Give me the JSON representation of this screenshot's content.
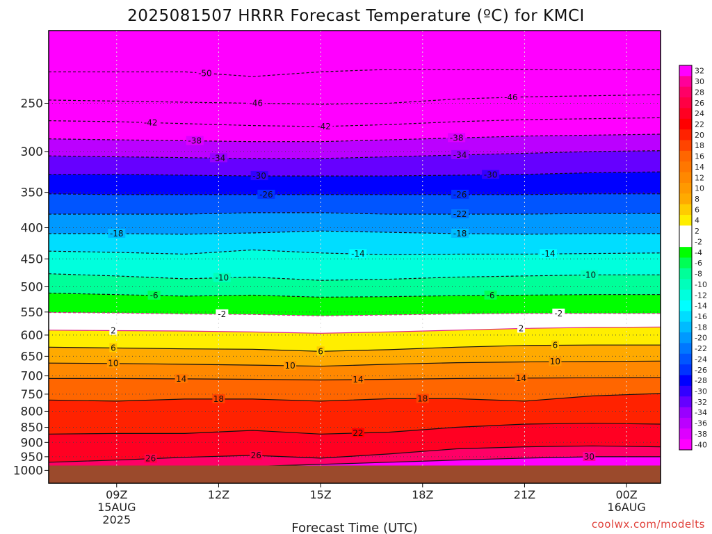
{
  "chart_data": {
    "type": "heatmap",
    "title": "2025081507 HRRR Forecast Temperature (ºC) for KMCI",
    "xlabel": "Forecast Time (UTC)",
    "ylabel": "",
    "credit": "coolwx.com/modelts",
    "x_range_hours": [
      7,
      25
    ],
    "y_range_hpa": [
      1050,
      190
    ],
    "y_ticks": [
      250,
      300,
      350,
      400,
      450,
      500,
      550,
      600,
      650,
      700,
      750,
      800,
      850,
      900,
      950,
      1000
    ],
    "x_ticks": [
      {
        "hour": 9,
        "lines": [
          "09Z",
          "15AUG",
          "2025"
        ]
      },
      {
        "hour": 12,
        "lines": [
          "12Z"
        ]
      },
      {
        "hour": 15,
        "lines": [
          "15Z"
        ]
      },
      {
        "hour": 18,
        "lines": [
          "18Z"
        ]
      },
      {
        "hour": 21,
        "lines": [
          "21Z"
        ]
      },
      {
        "hour": 24,
        "lines": [
          "00Z",
          "16AUG"
        ]
      }
    ],
    "colorbar_ticks": [
      32,
      30,
      28,
      26,
      24,
      22,
      20,
      18,
      16,
      14,
      12,
      10,
      8,
      6,
      4,
      2,
      -2,
      -4,
      -6,
      -8,
      -10,
      -12,
      -14,
      -16,
      -18,
      -20,
      -22,
      -24,
      -26,
      -28,
      -30,
      -32,
      -34,
      -36,
      -38,
      -40
    ],
    "colorbar_colors": [
      "#ff00ff",
      "#ff0099",
      "#ff0066",
      "#ff0044",
      "#ff0022",
      "#ff0000",
      "#ff2200",
      "#ff4400",
      "#ff6600",
      "#ff7700",
      "#ff8800",
      "#ff9900",
      "#ffaa00",
      "#ffcc00",
      "#ffee00",
      "#ffffff",
      "#ffffff",
      "#00ff00",
      "#00ff55",
      "#00ff99",
      "#00ffbb",
      "#00ffdd",
      "#00ffff",
      "#00ddff",
      "#00bbff",
      "#0099ff",
      "#0077ff",
      "#0055ff",
      "#0033ff",
      "#0000ff",
      "#3300ff",
      "#6600ff",
      "#9900ff",
      "#bb00ff",
      "#dd00ff",
      "#ff00ff"
    ],
    "surface_pressure_hpa": 982,
    "levels": [
      {
        "value": -50,
        "pressure": [
          222,
          222,
          222,
          226,
          222,
          220,
          220,
          220,
          220,
          220
        ]
      },
      {
        "value": -46,
        "pressure": [
          247,
          248,
          249,
          250,
          251,
          250,
          246,
          244,
          243,
          242
        ]
      },
      {
        "value": -42,
        "pressure": [
          267,
          268,
          270,
          272,
          273,
          271,
          268,
          266,
          265,
          264
        ]
      },
      {
        "value": -38,
        "pressure": [
          286,
          287,
          288,
          289,
          289,
          287,
          285,
          283,
          282,
          281
        ]
      },
      {
        "value": -34,
        "pressure": [
          305,
          306,
          307,
          308,
          308,
          306,
          304,
          302,
          300,
          299
        ]
      },
      {
        "value": -30,
        "pressure": [
          327,
          327,
          328,
          329,
          329,
          329,
          328,
          327,
          325,
          324
        ]
      },
      {
        "value": -26,
        "pressure": [
          352,
          353,
          353,
          353,
          353,
          353,
          353,
          353,
          352,
          352
        ]
      },
      {
        "value": -22,
        "pressure": [
          380,
          380,
          380,
          378,
          378,
          380,
          380,
          380,
          379,
          379
        ]
      },
      {
        "value": -18,
        "pressure": [
          409,
          409,
          410,
          408,
          405,
          407,
          409,
          410,
          409,
          409
        ]
      },
      {
        "value": -14,
        "pressure": [
          437,
          439,
          442,
          435,
          440,
          443,
          442,
          442,
          441,
          440
        ]
      },
      {
        "value": -10,
        "pressure": [
          476,
          480,
          485,
          482,
          488,
          486,
          482,
          480,
          478,
          478
        ]
      },
      {
        "value": -6,
        "pressure": [
          512,
          515,
          518,
          516,
          520,
          519,
          517,
          516,
          515,
          515
        ]
      },
      {
        "value": -2,
        "pressure": [
          551,
          552,
          554,
          555,
          558,
          556,
          554,
          553,
          553,
          553
        ]
      },
      {
        "value": 2,
        "pressure": [
          589,
          590,
          591,
          593,
          596,
          593,
          589,
          585,
          583,
          582
        ]
      },
      {
        "value": 6,
        "pressure": [
          628,
          630,
          632,
          633,
          638,
          634,
          628,
          624,
          623,
          623
        ]
      },
      {
        "value": 10,
        "pressure": [
          667,
          668,
          670,
          672,
          675,
          670,
          666,
          664,
          663,
          662
        ]
      },
      {
        "value": 14,
        "pressure": [
          707,
          707,
          708,
          709,
          711,
          709,
          707,
          706,
          705,
          704
        ]
      },
      {
        "value": 18,
        "pressure": [
          767,
          770,
          764,
          764,
          770,
          763,
          763,
          770,
          755,
          748
        ]
      },
      {
        "value": 22,
        "pressure": [
          872,
          870,
          870,
          860,
          872,
          866,
          850,
          840,
          837,
          840
        ]
      },
      {
        "value": 26,
        "pressure": [
          970,
          962,
          952,
          945,
          955,
          940,
          922,
          915,
          912,
          915
        ]
      },
      {
        "value": 30,
        "pressure": [
          null,
          null,
          null,
          985,
          978,
          970,
          962,
          955,
          950,
          950
        ]
      }
    ],
    "contour_labels": [
      {
        "value": -50,
        "hour": 11.6
      },
      {
        "value": -46,
        "hour": 13.1
      },
      {
        "value": -46,
        "hour": 20.6
      },
      {
        "value": -42,
        "hour": 10.0
      },
      {
        "value": -42,
        "hour": 15.1
      },
      {
        "value": -38,
        "hour": 11.3
      },
      {
        "value": -38,
        "hour": 19.0
      },
      {
        "value": -34,
        "hour": 12.0
      },
      {
        "value": -34,
        "hour": 19.1
      },
      {
        "value": -30,
        "hour": 13.2
      },
      {
        "value": -30,
        "hour": 20.0
      },
      {
        "value": -26,
        "hour": 13.4
      },
      {
        "value": -26,
        "hour": 19.1
      },
      {
        "value": -22,
        "hour": 19.1
      },
      {
        "value": -18,
        "hour": 9.0
      },
      {
        "value": -18,
        "hour": 19.1
      },
      {
        "value": -14,
        "hour": 16.1
      },
      {
        "value": -14,
        "hour": 21.7
      },
      {
        "value": -10,
        "hour": 12.1
      },
      {
        "value": -10,
        "hour": 22.9
      },
      {
        "value": -6,
        "hour": 10.1
      },
      {
        "value": -6,
        "hour": 20.0
      },
      {
        "value": -2,
        "hour": 12.1
      },
      {
        "value": -2,
        "hour": 22.0
      },
      {
        "value": 2,
        "hour": 8.9
      },
      {
        "value": 2,
        "hour": 20.9
      },
      {
        "value": 6,
        "hour": 8.9
      },
      {
        "value": 6,
        "hour": 15.0
      },
      {
        "value": 6,
        "hour": 21.9
      },
      {
        "value": 10,
        "hour": 8.9
      },
      {
        "value": 10,
        "hour": 14.1
      },
      {
        "value": 10,
        "hour": 21.9
      },
      {
        "value": 14,
        "hour": 10.9
      },
      {
        "value": 14,
        "hour": 16.1
      },
      {
        "value": 14,
        "hour": 20.9
      },
      {
        "value": 18,
        "hour": 12.0
      },
      {
        "value": 18,
        "hour": 18.0
      },
      {
        "value": 22,
        "hour": 16.1
      },
      {
        "value": 26,
        "hour": 10.0
      },
      {
        "value": 26,
        "hour": 13.1
      },
      {
        "value": 30,
        "hour": 22.9
      }
    ]
  }
}
